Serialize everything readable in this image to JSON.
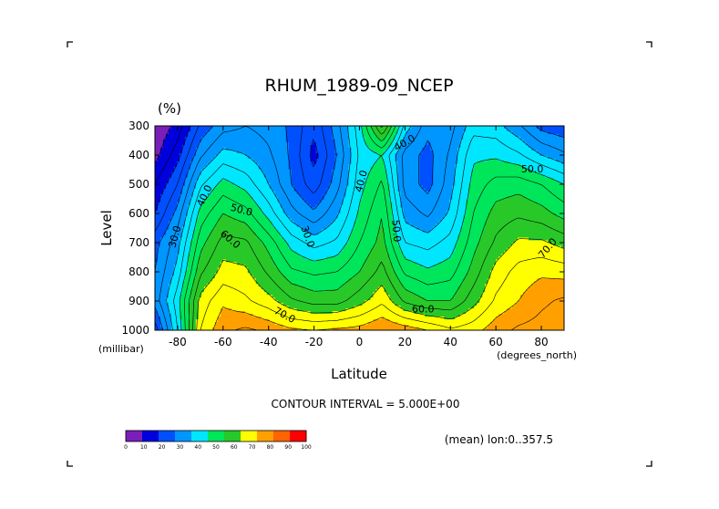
{
  "chart_data": {
    "type": "heatmap",
    "title": "RHUM_1989-09_NCEP",
    "units": "(%)",
    "xlabel": "Latitude",
    "ylabel": "Level",
    "x_units": "(degrees_north)",
    "y_units": "(millibar)",
    "xlim": [
      -90,
      90
    ],
    "ylim": [
      1000,
      300
    ],
    "x_ticks": [
      -80,
      -60,
      -40,
      -20,
      0,
      20,
      40,
      60,
      80
    ],
    "x_tick_labels": [
      "-80",
      "-60",
      "-40",
      "-20",
      "0",
      "20",
      "40",
      "60",
      "80"
    ],
    "y_ticks": [
      300,
      400,
      500,
      600,
      700,
      800,
      900,
      1000
    ],
    "y_tick_labels": [
      "300",
      "400",
      "500",
      "600",
      "700",
      "800",
      "900",
      "1000"
    ],
    "contour_interval_text": "CONTOUR INTERVAL = 5.000E+00",
    "annotation": "(mean) lon:0..357.5",
    "color_levels": [
      0,
      10,
      20,
      30,
      40,
      50,
      60,
      70,
      80,
      90,
      100
    ],
    "colorbar_labels": [
      "0",
      "10",
      "20",
      "30",
      "40",
      "50",
      "60",
      "70",
      "80",
      "90",
      "100"
    ],
    "colors": [
      "#7a1fb8",
      "#0000dc",
      "#0050ff",
      "#0096ff",
      "#00e6ff",
      "#00e65a",
      "#28c828",
      "#ffff00",
      "#ffa000",
      "#ff6400",
      "#ff0000"
    ],
    "grid": false,
    "latitudes": [
      -90,
      -80,
      -70,
      -60,
      -50,
      -40,
      -30,
      -20,
      -10,
      0,
      10,
      20,
      30,
      40,
      50,
      60,
      70,
      80,
      90
    ],
    "levels": [
      1000,
      900,
      800,
      700,
      600,
      500,
      400,
      300
    ],
    "values": [
      [
        22,
        45,
        75,
        84,
        86,
        84,
        81,
        80,
        81,
        82,
        85,
        83,
        80,
        76,
        78,
        83,
        86,
        87,
        88
      ],
      [
        32,
        48,
        72,
        79,
        76,
        72,
        66,
        63,
        63,
        68,
        74,
        64,
        60,
        60,
        68,
        76,
        80,
        84,
        86
      ],
      [
        30,
        42,
        64,
        72,
        71,
        64,
        56,
        54,
        55,
        60,
        67,
        54,
        51,
        53,
        62,
        72,
        77,
        79,
        78
      ],
      [
        28,
        38,
        58,
        67,
        66,
        58,
        48,
        43,
        46,
        55,
        62,
        45,
        43,
        47,
        58,
        66,
        71,
        71,
        68
      ],
      [
        20,
        32,
        52,
        60,
        57,
        48,
        37,
        31,
        39,
        51,
        60,
        38,
        34,
        41,
        55,
        62,
        64,
        62,
        58
      ],
      [
        15,
        25,
        44,
        52,
        48,
        40,
        30,
        22,
        33,
        48,
        56,
        33,
        28,
        38,
        52,
        57,
        58,
        55,
        50
      ],
      [
        8,
        18,
        34,
        42,
        40,
        36,
        29,
        18,
        30,
        46,
        50,
        33,
        28,
        36,
        49,
        49,
        46,
        40,
        36
      ],
      [
        5,
        12,
        26,
        33,
        35,
        33,
        29,
        21,
        33,
        48,
        72,
        43,
        32,
        33,
        43,
        42,
        36,
        28,
        26
      ]
    ],
    "contour_labels": [
      {
        "text": "30.0",
        "lat": -81,
        "lev": 680,
        "rot": -75
      },
      {
        "text": "40.0",
        "lat": -68,
        "lev": 540,
        "rot": -65
      },
      {
        "text": "50.0",
        "lat": -52,
        "lev": 590,
        "rot": 15
      },
      {
        "text": "60.0",
        "lat": -57,
        "lev": 690,
        "rot": 40
      },
      {
        "text": "70.0",
        "lat": -33,
        "lev": 950,
        "rot": 28
      },
      {
        "text": "30.0",
        "lat": -23,
        "lev": 680,
        "rot": 70
      },
      {
        "text": "40.0",
        "lat": 1,
        "lev": 490,
        "rot": -75
      },
      {
        "text": "40.0",
        "lat": 20,
        "lev": 360,
        "rot": -30
      },
      {
        "text": "50.0",
        "lat": 16,
        "lev": 660,
        "rot": 85
      },
      {
        "text": "60.0",
        "lat": 28,
        "lev": 930,
        "rot": 0
      },
      {
        "text": "50.0",
        "lat": 76,
        "lev": 450,
        "rot": 0
      },
      {
        "text": "70.0",
        "lat": 83,
        "lev": 720,
        "rot": -50
      }
    ]
  }
}
